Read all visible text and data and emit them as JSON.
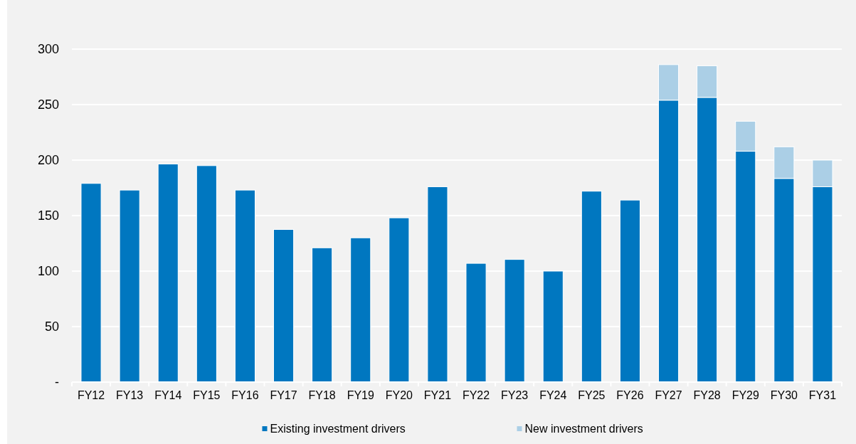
{
  "chart_data": {
    "type": "bar",
    "stacked": true,
    "categories": [
      "FY12",
      "FY13",
      "FY14",
      "FY15",
      "FY16",
      "FY17",
      "FY18",
      "FY19",
      "FY20",
      "FY21",
      "FY22",
      "FY23",
      "FY24",
      "FY25",
      "FY26",
      "FY27",
      "FY28",
      "FY29",
      "FY30",
      "FY31"
    ],
    "series": [
      {
        "name": "Existing investment drivers",
        "color": "#0077c0",
        "values": [
          179,
          173,
          196.5,
          195,
          173,
          137.5,
          121,
          130,
          148,
          176,
          107,
          110.5,
          100,
          172,
          164,
          254,
          256.5,
          208,
          183.5,
          176
        ]
      },
      {
        "name": "New investment drivers",
        "color": "#abcfe6",
        "values": [
          0,
          0,
          0,
          0,
          0,
          0,
          0,
          0,
          0,
          0,
          0,
          0,
          0,
          0,
          0,
          32,
          28.5,
          27,
          28.5,
          24
        ]
      }
    ],
    "ylim": [
      0,
      300
    ],
    "yticks": [
      {
        "value": 0,
        "label": "-"
      },
      50,
      100,
      150,
      200,
      250,
      300
    ],
    "grid": "y",
    "legend": "bottom"
  }
}
